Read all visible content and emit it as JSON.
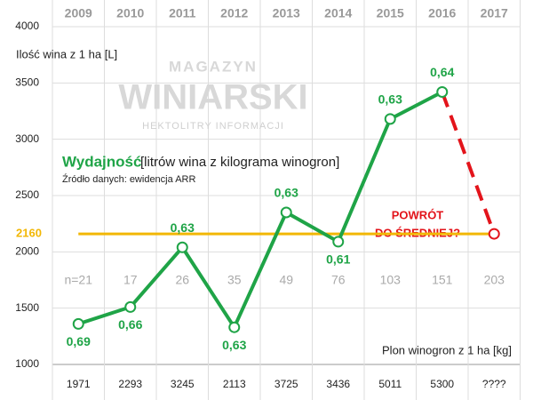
{
  "chart_data": {
    "type": "line",
    "subtitle_bold": "Wydajność",
    "subtitle_rest": "[litrów wina z kilograma winogron]",
    "source": "Źródło danych: ewidencja ARR",
    "ylabel": "Ilość wina z 1 ha [L]",
    "xlabel": "Plon winogron z 1 ha [kg]",
    "watermark": [
      "MAGAZYN",
      "WINIARSKI",
      "HEKTOLITRY INFORMACJI"
    ],
    "categories": [
      "2009",
      "2010",
      "2011",
      "2012",
      "2013",
      "2014",
      "2015",
      "2016",
      "2017"
    ],
    "harvest_labels": [
      "1971",
      "2293",
      "3245",
      "2113",
      "3725",
      "3436",
      "5011",
      "5300",
      "????"
    ],
    "sample_sizes": [
      "n=21",
      "17",
      "26",
      "35",
      "49",
      "76",
      "103",
      "151",
      "203"
    ],
    "series": [
      {
        "color": "#1fa447",
        "values": [
          1360,
          1510,
          2040,
          1330,
          2350,
          2090,
          3180,
          3420,
          null
        ],
        "value_labels": [
          "0,69",
          "0,66",
          "0,63",
          "0,63",
          "0,63",
          "0,61",
          "0,63",
          "0,64",
          null
        ]
      },
      {
        "color": "#e3141b",
        "dashed": true,
        "values": [
          null,
          null,
          null,
          null,
          null,
          null,
          null,
          3420,
          2160
        ]
      }
    ],
    "reference_line": {
      "value": 2160,
      "color": "#f2b705"
    },
    "annotation": [
      "POWRÓT",
      "DO ŚREDNIEJ?"
    ],
    "ylim": [
      1000,
      4000
    ],
    "yticks": [
      1000,
      1500,
      2000,
      2500,
      3000,
      3500,
      4000
    ],
    "grid": true
  }
}
